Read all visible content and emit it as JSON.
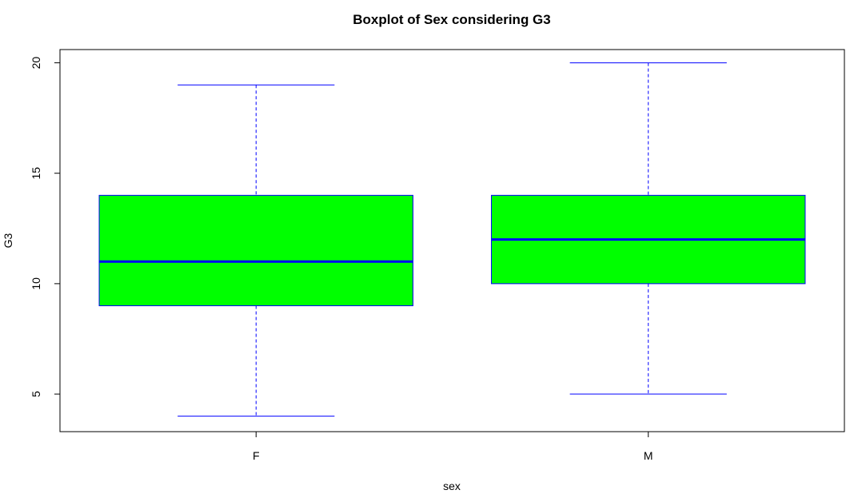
{
  "chart_data": {
    "type": "boxplot",
    "title": "Boxplot of Sex considering G3",
    "xlabel": "sex",
    "ylabel": "G3",
    "categories": [
      "F",
      "M"
    ],
    "ylim": [
      3.3,
      20.6
    ],
    "yticks": [
      5,
      10,
      15,
      20
    ],
    "boxes": [
      {
        "category": "F",
        "whisker_low": 4,
        "q1": 9,
        "median": 11,
        "q3": 14,
        "whisker_high": 19
      },
      {
        "category": "M",
        "whisker_low": 5,
        "q1": 10,
        "median": 12,
        "q3": 14,
        "whisker_high": 20
      }
    ],
    "colors": {
      "box_fill": "#00ff00",
      "border": "#0000ff",
      "median": "#0000ff",
      "whisker": "#0000ff"
    },
    "grid": false,
    "legend": "none"
  }
}
